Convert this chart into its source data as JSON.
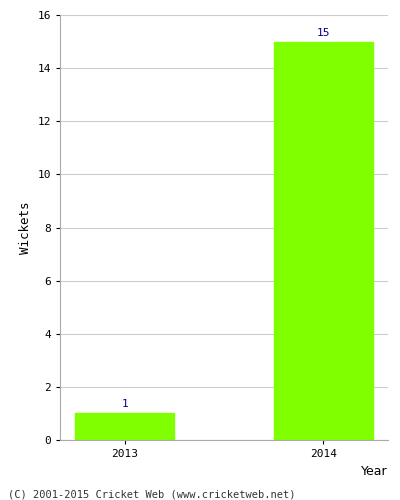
{
  "categories": [
    "2013",
    "2014"
  ],
  "values": [
    1,
    15
  ],
  "bar_color": "#7FFF00",
  "bar_edge_color": "#7FFF00",
  "label_color": "#00008B",
  "xlabel": "Year",
  "ylabel": "Wickets",
  "ylim": [
    0,
    16
  ],
  "yticks": [
    0,
    2,
    4,
    6,
    8,
    10,
    12,
    14,
    16
  ],
  "grid_color": "#cccccc",
  "background_color": "#ffffff",
  "footer_text": "(C) 2001-2015 Cricket Web (www.cricketweb.net)",
  "bar_width": 0.5,
  "label_fontsize": 8,
  "axis_label_fontsize": 9,
  "tick_fontsize": 8,
  "footer_fontsize": 7.5
}
